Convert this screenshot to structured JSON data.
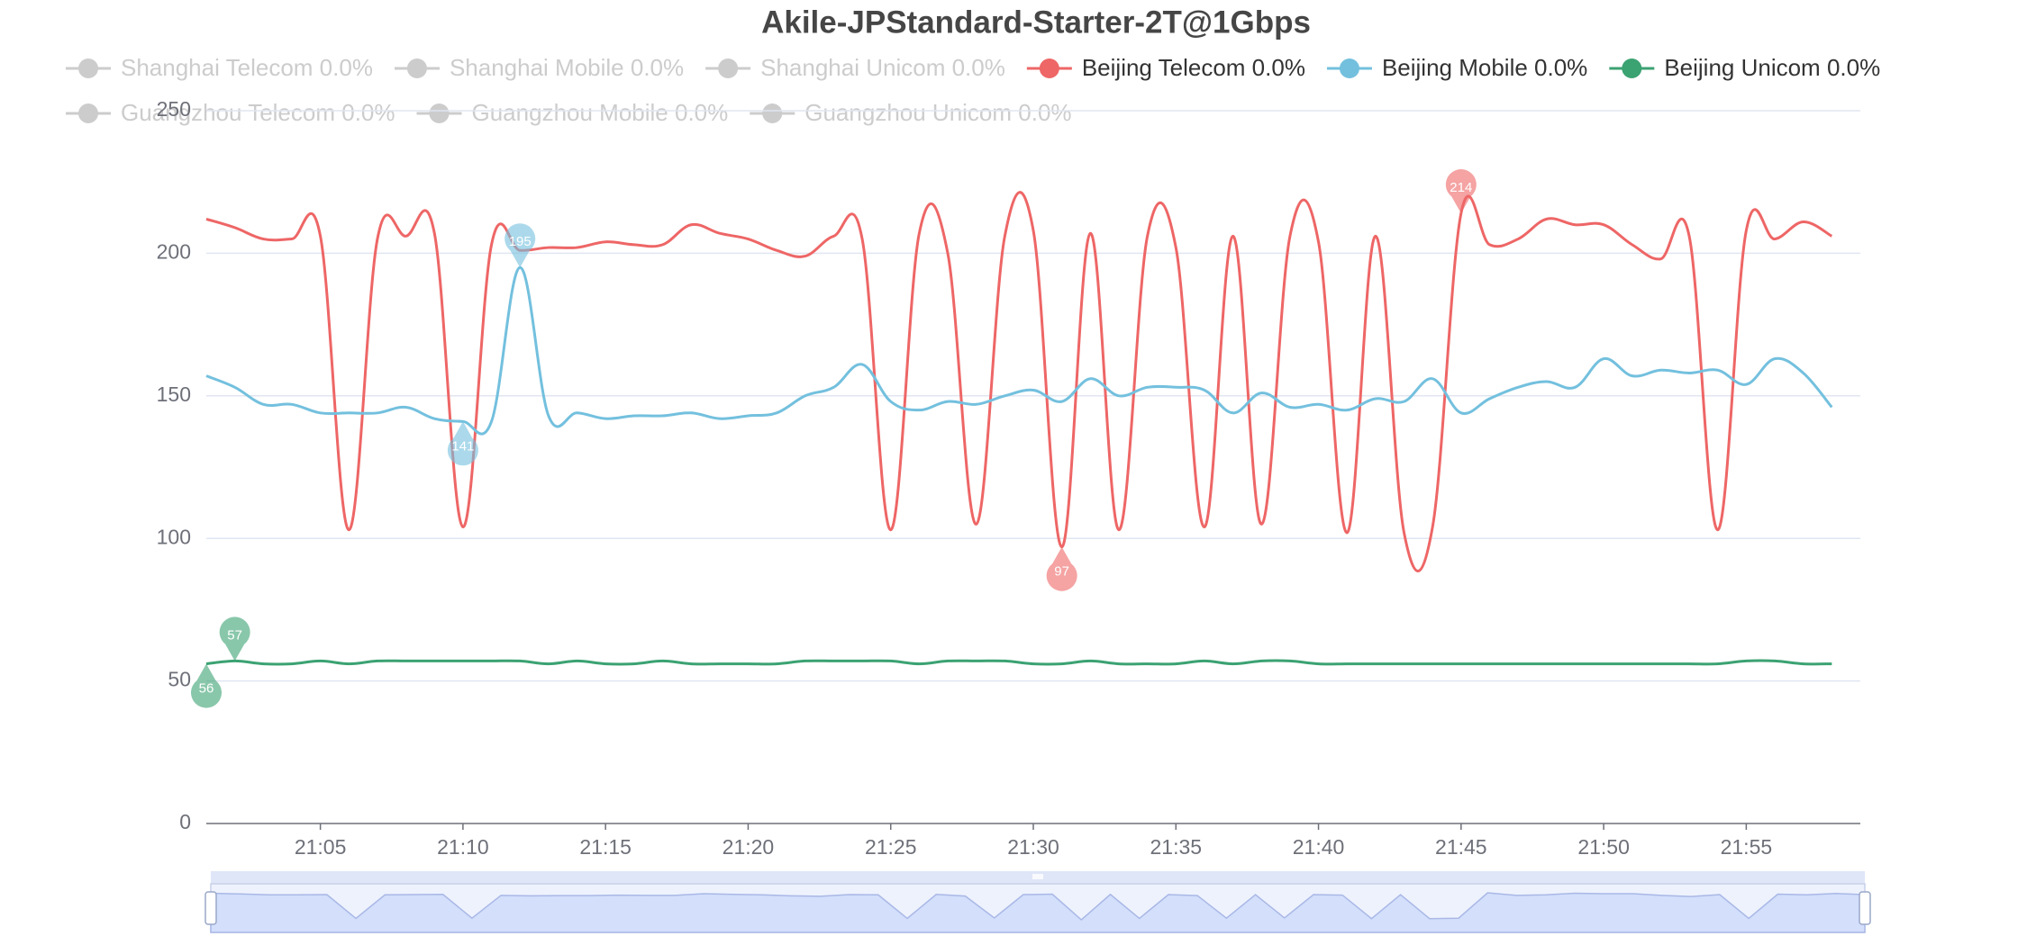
{
  "chart_data": {
    "type": "line",
    "title": "Akile-JPStandard-Starter-2T@1Gbps",
    "x": [
      "21:01",
      "21:02",
      "21:03",
      "21:04",
      "21:05",
      "21:06",
      "21:07",
      "21:08",
      "21:09",
      "21:10",
      "21:11",
      "21:12",
      "21:13",
      "21:14",
      "21:15",
      "21:16",
      "21:17",
      "21:18",
      "21:19",
      "21:20",
      "21:21",
      "21:22",
      "21:23",
      "21:24",
      "21:25",
      "21:26",
      "21:27",
      "21:28",
      "21:29",
      "21:30",
      "21:31",
      "21:32",
      "21:33",
      "21:34",
      "21:35",
      "21:36",
      "21:37",
      "21:38",
      "21:39",
      "21:40",
      "21:41",
      "21:42",
      "21:43",
      "21:44",
      "21:45",
      "21:46",
      "21:47",
      "21:48",
      "21:49",
      "21:50",
      "21:51",
      "21:52",
      "21:53",
      "21:54",
      "21:55",
      "21:56",
      "21:57",
      "21:58"
    ],
    "xlim": [
      "21:01",
      "21:59"
    ],
    "xticks": [
      "21:05",
      "21:10",
      "21:15",
      "21:20",
      "21:25",
      "21:30",
      "21:35",
      "21:40",
      "21:45",
      "21:50",
      "21:55"
    ],
    "ylim": [
      0,
      250
    ],
    "yticks": [
      0,
      50,
      100,
      150,
      200,
      250
    ],
    "grid": true,
    "smooth": true,
    "series": [
      {
        "name": "Shanghai Telecom 0.0%",
        "selected": false
      },
      {
        "name": "Shanghai Mobile 0.0%",
        "selected": false
      },
      {
        "name": "Shanghai Unicom 0.0%",
        "selected": false
      },
      {
        "name": "Beijing Telecom 0.0%",
        "selected": true,
        "color": "#ee6666",
        "values": [
          212,
          209,
          205,
          205,
          206,
          103,
          205,
          206,
          207,
          104,
          203,
          201,
          202,
          202,
          204,
          203,
          203,
          210,
          207,
          205,
          201,
          199,
          206,
          205,
          103,
          207,
          200,
          105,
          206,
          208,
          97,
          207,
          103,
          206,
          202,
          104,
          206,
          105,
          206,
          204,
          102,
          206,
          102,
          104,
          214,
          203,
          205,
          212,
          210,
          210,
          203,
          198,
          206,
          103,
          208,
          205,
          211,
          206
        ]
      },
      {
        "name": "Beijing Mobile 0.0%",
        "selected": true,
        "color": "#73c0de",
        "values": [
          157,
          153,
          147,
          147,
          144,
          144,
          144,
          146,
          142,
          141,
          141,
          195,
          143,
          144,
          142,
          143,
          143,
          144,
          142,
          143,
          144,
          150,
          153,
          161,
          148,
          145,
          148,
          147,
          150,
          152,
          148,
          156,
          150,
          153,
          153,
          152,
          144,
          151,
          146,
          147,
          145,
          149,
          148,
          156,
          144,
          149,
          153,
          155,
          153,
          163,
          157,
          159,
          158,
          159,
          154,
          163,
          158,
          146
        ]
      },
      {
        "name": "Beijing Unicom 0.0%",
        "selected": true,
        "color": "#3ba272",
        "values": [
          56,
          57,
          56,
          56,
          57,
          56,
          57,
          57,
          57,
          57,
          57,
          57,
          56,
          57,
          56,
          56,
          57,
          56,
          56,
          56,
          56,
          57,
          57,
          57,
          57,
          56,
          57,
          57,
          57,
          56,
          56,
          57,
          56,
          56,
          56,
          57,
          56,
          57,
          57,
          56,
          56,
          56,
          56,
          56,
          56,
          56,
          56,
          56,
          56,
          56,
          56,
          56,
          56,
          56,
          57,
          57,
          56,
          56
        ]
      },
      {
        "name": "Guangzhou Telecom 0.0%",
        "selected": false
      },
      {
        "name": "Guangzhou Mobile 0.0%",
        "selected": false
      },
      {
        "name": "Guangzhou Unicom 0.0%",
        "selected": false
      }
    ]
  }
}
